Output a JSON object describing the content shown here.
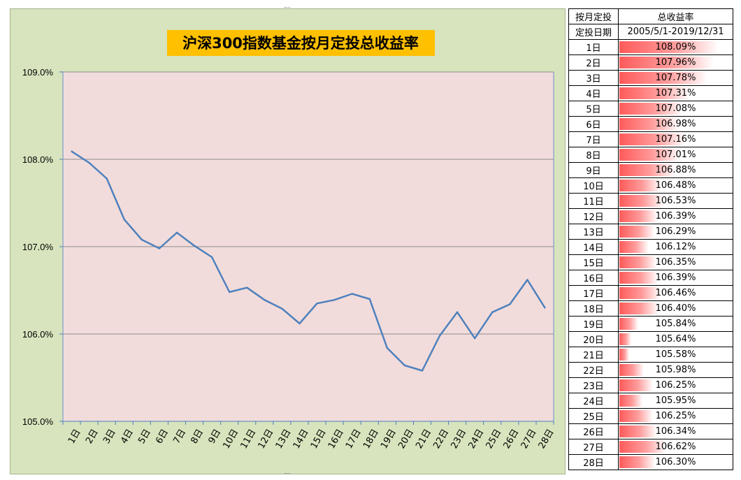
{
  "chart_data": {
    "type": "line",
    "title": "沪深300指数基金按月定投总收益率",
    "categories": [
      "1日",
      "2日",
      "3日",
      "4日",
      "5日",
      "6日",
      "7日",
      "8日",
      "9日",
      "10日",
      "11日",
      "12日",
      "13日",
      "14日",
      "15日",
      "16日",
      "17日",
      "18日",
      "19日",
      "20日",
      "21日",
      "22日",
      "23日",
      "24日",
      "25日",
      "26日",
      "27日",
      "28日"
    ],
    "series": [
      {
        "values": [
          108.09,
          107.96,
          107.78,
          107.31,
          107.08,
          106.98,
          107.16,
          107.01,
          106.88,
          106.48,
          106.53,
          106.39,
          106.29,
          106.12,
          106.35,
          106.39,
          106.46,
          106.4,
          105.84,
          105.64,
          105.58,
          105.98,
          106.25,
          105.95,
          106.25,
          106.34,
          106.62,
          106.3
        ]
      }
    ],
    "ylim": [
      105.0,
      109.0
    ],
    "yticks": [
      105.0,
      106.0,
      107.0,
      108.0,
      109.0
    ],
    "ytick_labels": [
      "105.0%",
      "106.0%",
      "107.0%",
      "108.0%",
      "109.0%"
    ],
    "grid": true,
    "xlabel": "",
    "ylabel": "",
    "colors": {
      "line": "#4f81bd",
      "plot_bg": "#f2dcdb",
      "chart_bg": "#d7e4bd",
      "title_bg": "#ffc000",
      "bar_start": "#ff5a5a"
    }
  },
  "table": {
    "header1": [
      "按月定投",
      "总收益率"
    ],
    "header2": [
      "定投日期",
      "2005/5/1-2019/12/31"
    ],
    "rows": [
      [
        "1日",
        "108.09%"
      ],
      [
        "2日",
        "107.96%"
      ],
      [
        "3日",
        "107.78%"
      ],
      [
        "4日",
        "107.31%"
      ],
      [
        "5日",
        "107.08%"
      ],
      [
        "6日",
        "106.98%"
      ],
      [
        "7日",
        "107.16%"
      ],
      [
        "8日",
        "107.01%"
      ],
      [
        "9日",
        "106.88%"
      ],
      [
        "10日",
        "106.48%"
      ],
      [
        "11日",
        "106.53%"
      ],
      [
        "12日",
        "106.39%"
      ],
      [
        "13日",
        "106.29%"
      ],
      [
        "14日",
        "106.12%"
      ],
      [
        "15日",
        "106.35%"
      ],
      [
        "16日",
        "106.39%"
      ],
      [
        "17日",
        "106.46%"
      ],
      [
        "18日",
        "106.40%"
      ],
      [
        "19日",
        "105.84%"
      ],
      [
        "20日",
        "105.64%"
      ],
      [
        "21日",
        "105.58%"
      ],
      [
        "22日",
        "105.98%"
      ],
      [
        "23日",
        "106.25%"
      ],
      [
        "24日",
        "105.95%"
      ],
      [
        "25日",
        "106.25%"
      ],
      [
        "26日",
        "106.34%"
      ],
      [
        "27日",
        "106.62%"
      ],
      [
        "28日",
        "106.30%"
      ]
    ],
    "bar_min": 105.3,
    "bar_max": 108.25
  }
}
